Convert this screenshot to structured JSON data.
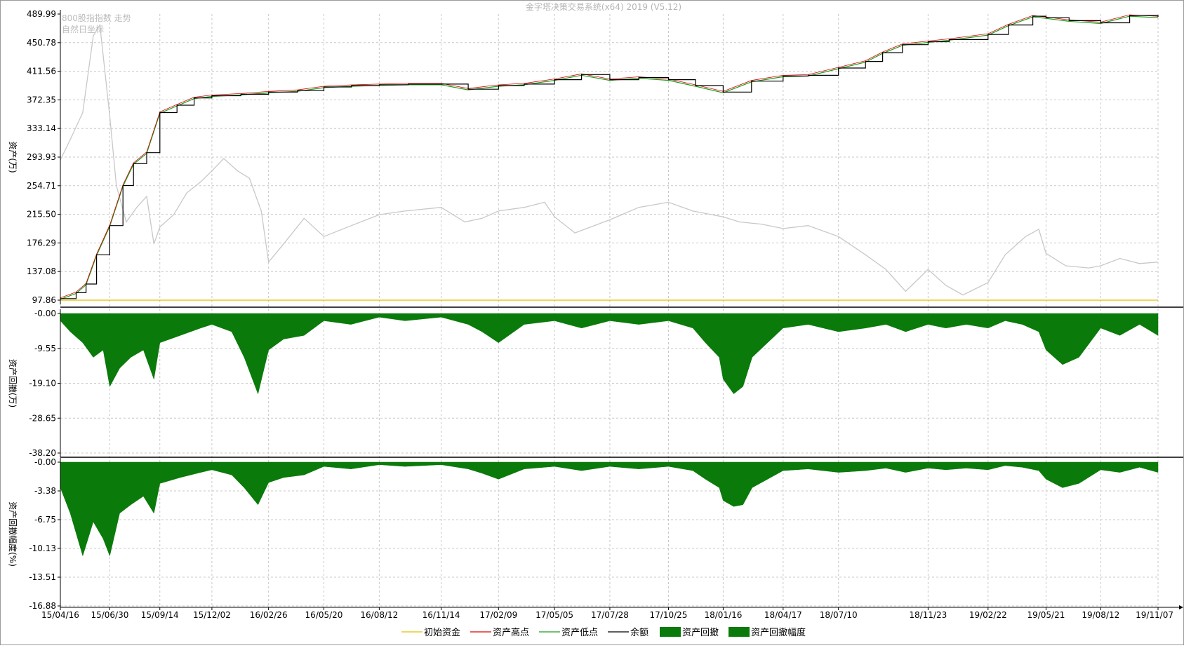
{
  "window": {
    "title": "金字塔决策交易系统(x64) 2019 (V5.12)"
  },
  "overlay_labels": {
    "index_name": "800股指指数 走势",
    "coord_mode": "自然日坐标"
  },
  "colors": {
    "initial": "#e0c000",
    "high": "#e00000",
    "low": "#1a9e1a",
    "balance": "#000000",
    "drawdown": "#0a7a0a",
    "index": "#c8c8c8",
    "grid": "#c8c8c8",
    "axis": "#000000"
  },
  "chart_data": [
    {
      "type": "line",
      "panel": "assets",
      "ylabel": "资产(万)",
      "y_ticks": [
        "489.99",
        "450.78",
        "411.56",
        "372.35",
        "333.14",
        "293.93",
        "254.71",
        "215.50",
        "176.29",
        "137.08",
        "97.86"
      ],
      "ylim": [
        97.86,
        489.99
      ],
      "grid": true,
      "initial_capital": 97.86,
      "balance_series": {
        "name": "余额",
        "x": [
          "15/04/16",
          "15/05/10",
          "15/05/25",
          "15/06/10",
          "15/06/30",
          "15/07/20",
          "15/08/05",
          "15/08/25",
          "15/09/14",
          "15/10/10",
          "15/11/05",
          "15/12/02",
          "16/01/15",
          "16/02/26",
          "16/04/10",
          "16/05/20",
          "16/07/01",
          "16/08/12",
          "16/09/25",
          "16/11/14",
          "16/12/25",
          "17/02/09",
          "17/03/20",
          "17/05/05",
          "17/06/15",
          "17/07/28",
          "17/09/10",
          "17/10/25",
          "17/12/05",
          "18/01/16",
          "18/02/28",
          "18/04/17",
          "18/05/25",
          "18/07/10",
          "18/08/20",
          "18/09/15",
          "18/10/15",
          "18/11/23",
          "18/12/25",
          "19/02/22",
          "19/03/25",
          "19/05/01",
          "19/05/21",
          "19/06/25",
          "19/08/12",
          "19/09/25",
          "19/11/07"
        ],
        "values": [
          100,
          108,
          120,
          160,
          200,
          255,
          285,
          300,
          355,
          365,
          375,
          378,
          380,
          383,
          385,
          390,
          392,
          393,
          394,
          394,
          387,
          392,
          394,
          400,
          407,
          400,
          403,
          400,
          392,
          383,
          398,
          405,
          406,
          416,
          425,
          437,
          448,
          452,
          455,
          462,
          475,
          487,
          485,
          481,
          478,
          488,
          486
        ]
      },
      "index_series": {
        "name": "800股指指数 走势",
        "x": [
          "15/04/16",
          "15/05/01",
          "15/05/20",
          "15/06/05",
          "15/06/15",
          "15/06/30",
          "15/07/10",
          "15/07/25",
          "15/08/10",
          "15/08/25",
          "15/09/05",
          "15/09/14",
          "15/10/05",
          "15/10/25",
          "15/11/15",
          "15/12/02",
          "15/12/20",
          "16/01/10",
          "16/01/28",
          "16/02/15",
          "16/02/26",
          "16/03/20",
          "16/04/20",
          "16/05/20",
          "16/06/25",
          "16/08/12",
          "16/09/20",
          "16/11/14",
          "16/12/20",
          "17/01/15",
          "17/02/09",
          "17/03/20",
          "17/04/20",
          "17/05/05",
          "17/06/05",
          "17/07/28",
          "17/09/10",
          "17/10/25",
          "17/12/01",
          "18/01/16",
          "18/02/10",
          "18/03/15",
          "18/04/17",
          "18/05/25",
          "18/07/10",
          "18/08/20",
          "18/09/20",
          "18/10/20",
          "18/11/23",
          "18/12/20",
          "19/01/15",
          "19/02/22",
          "19/03/20",
          "19/04/20",
          "19/05/10",
          "19/05/21",
          "19/06/20",
          "19/07/25",
          "19/08/12",
          "19/09/10",
          "19/10/10",
          "19/11/07"
        ],
        "values": [
          290,
          318,
          355,
          460,
          475,
          350,
          255,
          205,
          225,
          240,
          175,
          198,
          215,
          245,
          260,
          275,
          292,
          275,
          265,
          220,
          150,
          175,
          210,
          185,
          198,
          215,
          220,
          225,
          205,
          210,
          220,
          225,
          232,
          212,
          190,
          208,
          225,
          232,
          220,
          212,
          205,
          202,
          196,
          200,
          185,
          160,
          140,
          110,
          140,
          118,
          105,
          122,
          160,
          185,
          195,
          162,
          145,
          142,
          145,
          155,
          148,
          150
        ]
      }
    },
    {
      "type": "area",
      "panel": "drawdown",
      "name": "资产回撤",
      "ylabel": "资产回撤(万)",
      "y_ticks": [
        "-0.00",
        "-9.55",
        "-19.10",
        "-28.65",
        "-38.20"
      ],
      "ylim": [
        -38.2,
        0
      ],
      "x": [
        "15/04/16",
        "15/05/01",
        "15/05/20",
        "15/06/05",
        "15/06/20",
        "15/06/30",
        "15/07/15",
        "15/08/01",
        "15/08/20",
        "15/09/05",
        "15/09/14",
        "15/10/15",
        "15/11/15",
        "15/12/02",
        "16/01/01",
        "16/01/20",
        "16/02/10",
        "16/02/26",
        "16/03/20",
        "16/04/20",
        "16/05/20",
        "16/06/30",
        "16/08/12",
        "16/09/20",
        "16/11/14",
        "16/12/25",
        "17/01/15",
        "17/02/09",
        "17/03/20",
        "17/05/05",
        "17/06/15",
        "17/07/28",
        "17/09/10",
        "17/10/25",
        "17/12/01",
        "17/12/20",
        "18/01/10",
        "18/01/16",
        "18/02/01",
        "18/02/15",
        "18/03/01",
        "18/04/17",
        "18/05/25",
        "18/07/10",
        "18/08/20",
        "18/09/20",
        "18/10/20",
        "18/11/23",
        "18/12/20",
        "19/01/20",
        "19/02/22",
        "19/03/20",
        "19/04/15",
        "19/05/10",
        "19/05/21",
        "19/06/15",
        "19/07/10",
        "19/08/12",
        "19/09/10",
        "19/10/10",
        "19/11/07"
      ],
      "values": [
        -2,
        -5,
        -8,
        -12,
        -10,
        -20,
        -15,
        -12,
        -10,
        -18,
        -8,
        -6,
        -4,
        -3,
        -5,
        -12,
        -22,
        -10,
        -7,
        -6,
        -2,
        -3,
        -1,
        -2,
        -1,
        -3,
        -5,
        -8,
        -3,
        -2,
        -4,
        -2,
        -3,
        -2,
        -4,
        -8,
        -12,
        -18,
        -22,
        -20,
        -12,
        -4,
        -3,
        -5,
        -4,
        -3,
        -5,
        -3,
        -4,
        -3,
        -4,
        -2,
        -3,
        -5,
        -10,
        -14,
        -12,
        -4,
        -6,
        -3,
        -6
      ]
    },
    {
      "type": "area",
      "panel": "drawdown_pct",
      "name": "资产回撤幅度",
      "ylabel": "资产回撤幅度(%)",
      "y_ticks": [
        "-0.00",
        "-3.38",
        "-6.75",
        "-10.13",
        "-13.51",
        "-16.88"
      ],
      "ylim": [
        -16.88,
        0
      ],
      "x": [
        "15/04/16",
        "15/05/01",
        "15/05/20",
        "15/06/05",
        "15/06/20",
        "15/06/30",
        "15/07/15",
        "15/08/01",
        "15/08/20",
        "15/09/05",
        "15/09/14",
        "15/10/15",
        "15/11/15",
        "15/12/02",
        "16/01/01",
        "16/01/20",
        "16/02/10",
        "16/02/26",
        "16/03/20",
        "16/04/20",
        "16/05/20",
        "16/06/30",
        "16/08/12",
        "16/09/20",
        "16/11/14",
        "16/12/25",
        "17/01/15",
        "17/02/09",
        "17/03/20",
        "17/05/05",
        "17/06/15",
        "17/07/28",
        "17/09/10",
        "17/10/25",
        "17/12/01",
        "17/12/20",
        "18/01/10",
        "18/01/16",
        "18/02/01",
        "18/02/15",
        "18/03/01",
        "18/04/17",
        "18/05/25",
        "18/07/10",
        "18/08/20",
        "18/09/20",
        "18/10/20",
        "18/11/23",
        "18/12/20",
        "19/01/20",
        "19/02/22",
        "19/03/20",
        "19/04/15",
        "19/05/10",
        "19/05/21",
        "19/06/15",
        "19/07/10",
        "19/08/12",
        "19/09/10",
        "19/10/10",
        "19/11/07"
      ],
      "values": [
        -3,
        -6,
        -11,
        -7,
        -9,
        -11,
        -6,
        -5,
        -4,
        -6,
        -2.5,
        -1.8,
        -1.2,
        -0.9,
        -1.5,
        -3,
        -5,
        -2.4,
        -1.8,
        -1.5,
        -0.5,
        -0.8,
        -0.3,
        -0.5,
        -0.3,
        -0.8,
        -1.3,
        -2,
        -0.8,
        -0.5,
        -1,
        -0.5,
        -0.8,
        -0.5,
        -1,
        -2,
        -3,
        -4.5,
        -5.2,
        -5,
        -3,
        -1,
        -0.8,
        -1.2,
        -1,
        -0.7,
        -1.2,
        -0.7,
        -0.9,
        -0.7,
        -0.9,
        -0.4,
        -0.6,
        -1,
        -2,
        -3,
        -2.5,
        -0.9,
        -1.2,
        -0.6,
        -1.2
      ]
    }
  ],
  "x_axis": {
    "ticks": [
      "15/04/16",
      "15/06/30",
      "15/09/14",
      "15/12/02",
      "16/02/26",
      "16/05/20",
      "16/08/12",
      "16/11/14",
      "17/02/09",
      "17/05/05",
      "17/07/28",
      "17/10/25",
      "18/01/16",
      "18/04/17",
      "18/07/10",
      "18/11/23",
      "19/02/22",
      "19/05/21",
      "19/08/12",
      "19/11/07"
    ]
  },
  "legend": {
    "placement": "bottom",
    "items": [
      {
        "label": "初始资金",
        "kind": "line",
        "color_key": "initial"
      },
      {
        "label": "资产高点",
        "kind": "line",
        "color_key": "high"
      },
      {
        "label": "资产低点",
        "kind": "line",
        "color_key": "low"
      },
      {
        "label": "余额",
        "kind": "line",
        "color_key": "balance"
      },
      {
        "label": "资产回撤",
        "kind": "box",
        "color_key": "drawdown"
      },
      {
        "label": "资产回撤幅度",
        "kind": "box",
        "color_key": "drawdown"
      }
    ]
  }
}
